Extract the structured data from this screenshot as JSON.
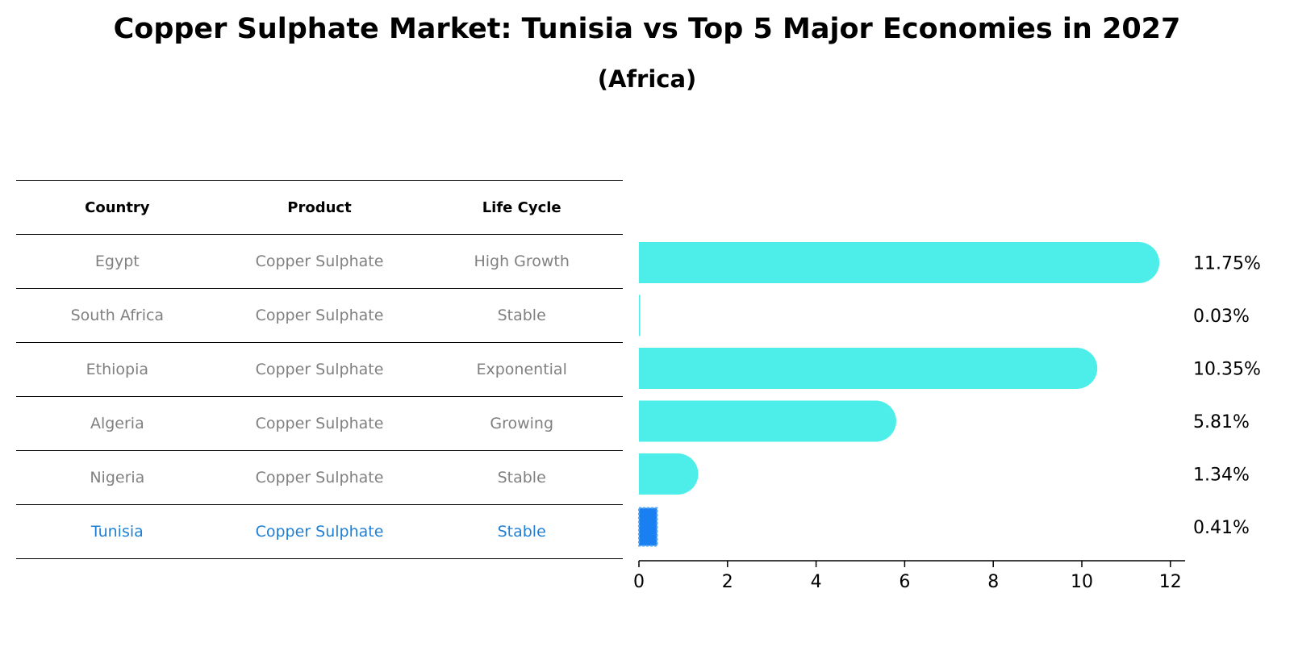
{
  "title": "Copper Sulphate Market: Tunisia vs Top 5 Major Economies in 2027",
  "subtitle": "(Africa)",
  "table": {
    "headers": [
      "Country",
      "Product",
      "Life Cycle"
    ],
    "rows": [
      [
        "Egypt",
        "Copper Sulphate",
        "High Growth"
      ],
      [
        "South Africa",
        "Copper Sulphate",
        "Stable"
      ],
      [
        "Ethiopia",
        "Copper Sulphate",
        "Exponential"
      ],
      [
        "Algeria",
        "Copper Sulphate",
        "Growing"
      ],
      [
        "Nigeria",
        "Copper Sulphate",
        "Stable"
      ],
      [
        "Tunisia",
        "Copper Sulphate",
        "Stable"
      ]
    ],
    "highlight_row": 5,
    "highlight_color": "#1f7fd4"
  },
  "chart_data": {
    "type": "bar",
    "orientation": "horizontal",
    "categories": [
      "Egypt",
      "South Africa",
      "Ethiopia",
      "Algeria",
      "Nigeria",
      "Tunisia"
    ],
    "values": [
      11.75,
      0.03,
      10.35,
      5.81,
      1.34,
      0.41
    ],
    "value_labels": [
      "11.75%",
      "0.03%",
      "10.35%",
      "5.81%",
      "1.34%",
      "0.41%"
    ],
    "xlim": [
      0,
      12.3
    ],
    "xticks": [
      0,
      2,
      4,
      6,
      8,
      10,
      12
    ],
    "bar_color": "#4deeea",
    "highlight_color": "#1a7ff0",
    "highlight_index": 5,
    "grid": false
  }
}
